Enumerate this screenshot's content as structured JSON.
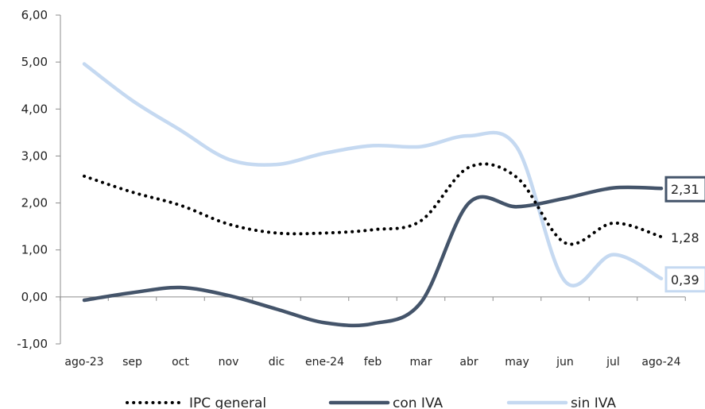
{
  "chart_data": {
    "type": "line",
    "categories": [
      "ago-23",
      "sep",
      "oct",
      "nov",
      "dic",
      "ene-24",
      "feb",
      "mar",
      "abr",
      "may",
      "jun",
      "jul",
      "ago-24"
    ],
    "ylim": [
      -1,
      6
    ],
    "ytick_labels": [
      "-1,00",
      "0,00",
      "1,00",
      "2,00",
      "3,00",
      "4,00",
      "5,00",
      "6,00"
    ],
    "series": [
      {
        "name": "IPC general",
        "color": "#000000",
        "style": "dotted",
        "values": [
          2.57,
          2.23,
          1.95,
          1.55,
          1.36,
          1.36,
          1.43,
          1.62,
          2.76,
          2.54,
          1.15,
          1.57,
          1.28
        ]
      },
      {
        "name": "con IVA",
        "color": "#44546a",
        "style": "solid",
        "values": [
          -0.07,
          0.09,
          0.2,
          0.03,
          -0.26,
          -0.55,
          -0.57,
          -0.12,
          2.0,
          1.92,
          2.1,
          2.32,
          2.31
        ]
      },
      {
        "name": "sin IVA",
        "color": "#c5d9f1",
        "style": "solid",
        "values": [
          4.96,
          4.18,
          3.55,
          2.93,
          2.82,
          3.06,
          3.22,
          3.2,
          3.43,
          3.18,
          0.33,
          0.9,
          0.39
        ]
      }
    ],
    "end_labels": [
      {
        "series": "con IVA",
        "text": "2,31",
        "boxed": true,
        "border_color": "#44546a"
      },
      {
        "series": "IPC general",
        "text": "1,28",
        "boxed": false
      },
      {
        "series": "sin IVA",
        "text": "0,39",
        "boxed": true,
        "border_color": "#c5d9f1"
      }
    ],
    "legend_position": "bottom",
    "grid": false
  }
}
